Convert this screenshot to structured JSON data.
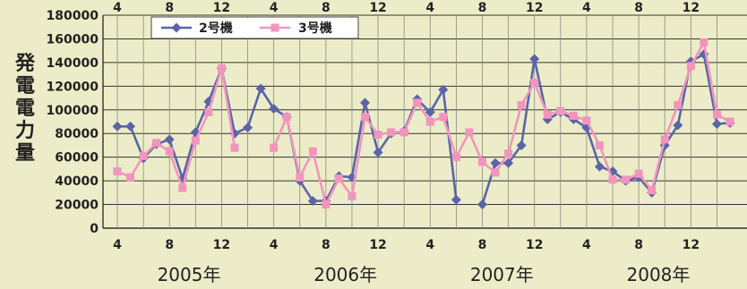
{
  "chart_data": {
    "type": "line",
    "ylabel": "発電電力量",
    "ylim": [
      0,
      180000
    ],
    "yticks": [
      0,
      20000,
      40000,
      60000,
      80000,
      100000,
      120000,
      140000,
      160000,
      180000
    ],
    "ytick_labels": [
      "0",
      "20000",
      "40000",
      "60000",
      "80000",
      "100000",
      "120000",
      "140000",
      "160000",
      "180000"
    ],
    "month_tick_labels": [
      "4",
      "8",
      "12",
      "4",
      "8",
      "12",
      "4",
      "8",
      "12",
      "4",
      "8",
      "12"
    ],
    "month_tick_index": [
      0,
      4,
      8,
      12,
      16,
      20,
      24,
      28,
      32,
      36,
      40,
      44
    ],
    "years": [
      {
        "label": "2005年",
        "start_index": 0
      },
      {
        "label": "2006年",
        "start_index": 12
      },
      {
        "label": "2007年",
        "start_index": 24
      },
      {
        "label": "2008年",
        "start_index": 36
      }
    ],
    "x": [
      "2005-04",
      "2005-05",
      "2005-06",
      "2005-07",
      "2005-08",
      "2005-09",
      "2005-10",
      "2005-11",
      "2005-12",
      "2006-01",
      "2006-02",
      "2006-03",
      "2006-04",
      "2006-05",
      "2006-06",
      "2006-07",
      "2006-08",
      "2006-09",
      "2006-10",
      "2006-11",
      "2006-12",
      "2007-01",
      "2007-02",
      "2007-03",
      "2007-04",
      "2007-05",
      "2007-06",
      "2007-07",
      "2007-08",
      "2007-09",
      "2007-10",
      "2007-11",
      "2007-12",
      "2008-01",
      "2008-02",
      "2008-03",
      "2008-04",
      "2008-05",
      "2008-06",
      "2008-07",
      "2008-08",
      "2008-09",
      "2008-10",
      "2008-11",
      "2008-12",
      "2009-01",
      "2009-02",
      "2009-03"
    ],
    "legend_position": "top-left",
    "grid": true,
    "series": [
      {
        "name": "2号機",
        "color": "#5b64a8",
        "marker": "diamond",
        "values": [
          86000,
          86000,
          59000,
          71000,
          75000,
          42000,
          81000,
          107000,
          135000,
          80000,
          85000,
          118000,
          101000,
          94000,
          40000,
          23000,
          23000,
          44000,
          43000,
          106000,
          64000,
          80000,
          82000,
          109000,
          98000,
          117000,
          24000,
          null,
          20000,
          55000,
          55000,
          70000,
          143000,
          92000,
          98000,
          92000,
          85000,
          52000,
          48000,
          40000,
          43000,
          30000,
          70000,
          87000,
          141000,
          147000,
          88000,
          89000
        ]
      },
      {
        "name": "3号機",
        "color": "#f295be",
        "marker": "square",
        "values": [
          48000,
          43000,
          61000,
          72000,
          65000,
          34000,
          74000,
          98000,
          135000,
          68000,
          null,
          null,
          68000,
          94000,
          43000,
          65000,
          20000,
          42000,
          27000,
          94000,
          79000,
          81000,
          81000,
          106000,
          90000,
          94000,
          60000,
          81000,
          56000,
          47000,
          63000,
          104000,
          123000,
          96000,
          99000,
          95000,
          91000,
          70000,
          41000,
          41000,
          46000,
          32000,
          75000,
          104000,
          137000,
          157000,
          96000,
          90000
        ]
      }
    ]
  }
}
